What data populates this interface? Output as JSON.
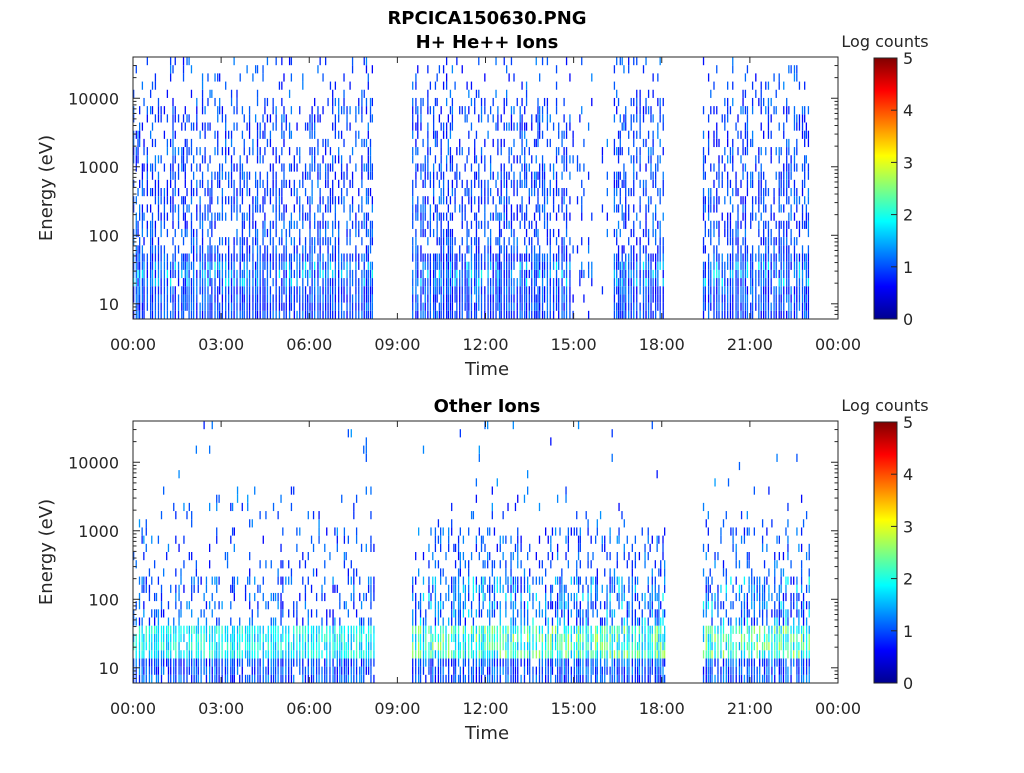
{
  "figure": {
    "filename": "RPCICA150630.PNG"
  },
  "chart_data": [
    {
      "type": "heatmap",
      "title": "H+ He++ Ions",
      "xlabel": "Time",
      "ylabel": "Energy (eV)",
      "yscale": "log",
      "ylim": [
        6,
        40000
      ],
      "xlim_hours": [
        0,
        24
      ],
      "x_ticks": [
        "00:00",
        "03:00",
        "06:00",
        "09:00",
        "12:00",
        "15:00",
        "18:00",
        "21:00",
        "00:00"
      ],
      "y_ticks": [
        "10",
        "100",
        "1000",
        "10000"
      ],
      "y_tick_values": [
        10,
        100,
        1000,
        10000
      ],
      "colorbar": {
        "label": "Log counts",
        "range": [
          0,
          5
        ],
        "ticks": [
          "0",
          "1",
          "2",
          "3",
          "4",
          "5"
        ]
      },
      "data_segments_hours": [
        [
          0.0,
          8.2
        ],
        [
          9.5,
          18.1
        ],
        [
          19.4,
          23.0
        ]
      ],
      "sparse_intervals_hours": [
        [
          14.9,
          16.3
        ]
      ],
      "dominant_log_counts": 1.0,
      "peak_energy_band_eV": [
        20,
        40
      ],
      "peak_log_counts": 2.0,
      "colormap": "jet"
    },
    {
      "type": "heatmap",
      "title": "Other Ions",
      "xlabel": "Time",
      "ylabel": "Energy (eV)",
      "yscale": "log",
      "ylim": [
        6,
        40000
      ],
      "xlim_hours": [
        0,
        24
      ],
      "x_ticks": [
        "00:00",
        "03:00",
        "06:00",
        "09:00",
        "12:00",
        "15:00",
        "18:00",
        "21:00",
        "00:00"
      ],
      "y_ticks": [
        "10",
        "100",
        "1000",
        "10000"
      ],
      "y_tick_values": [
        10,
        100,
        1000,
        10000
      ],
      "colorbar": {
        "label": "Log counts",
        "range": [
          0,
          5
        ],
        "ticks": [
          "0",
          "1",
          "2",
          "3",
          "4",
          "5"
        ]
      },
      "data_segments_hours": [
        [
          0.0,
          8.2
        ],
        [
          9.5,
          18.1
        ],
        [
          19.4,
          23.0
        ]
      ],
      "dominant_log_counts": 1.0,
      "peak_energy_band_eV": [
        15,
        40
      ],
      "peak_log_counts": 2.8,
      "colormap": "jet"
    }
  ]
}
